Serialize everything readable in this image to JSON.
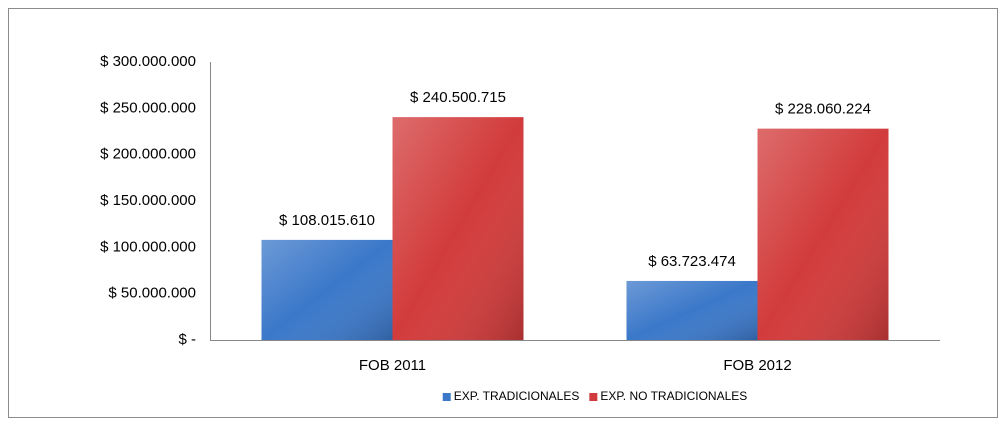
{
  "chart_data": {
    "type": "bar",
    "categories": [
      "FOB 2011",
      "FOB 2012"
    ],
    "series": [
      {
        "name": "EXP. TRADICIONALES",
        "color": "#3b78c9",
        "values": [
          108015610,
          63723474
        ],
        "value_labels": [
          "$ 108.015.610",
          "$ 63.723.474"
        ]
      },
      {
        "name": "EXP. NO TRADICIONALES",
        "color": "#d23b3b",
        "values": [
          240500715,
          228060224
        ],
        "value_labels": [
          "$ 240.500.715",
          "$ 228.060.224"
        ]
      }
    ],
    "ylim": [
      0,
      300000000
    ],
    "yticks": [
      {
        "value": 0,
        "label": "$ -"
      },
      {
        "value": 50000000,
        "label": "$ 50.000.000"
      },
      {
        "value": 100000000,
        "label": "$ 100.000.000"
      },
      {
        "value": 150000000,
        "label": "$ 150.000.000"
      },
      {
        "value": 200000000,
        "label": "$ 200.000.000"
      },
      {
        "value": 250000000,
        "label": "$ 250.000.000"
      },
      {
        "value": 300000000,
        "label": "$ 300.000.000"
      }
    ],
    "grid": false,
    "legend": "bottom"
  }
}
